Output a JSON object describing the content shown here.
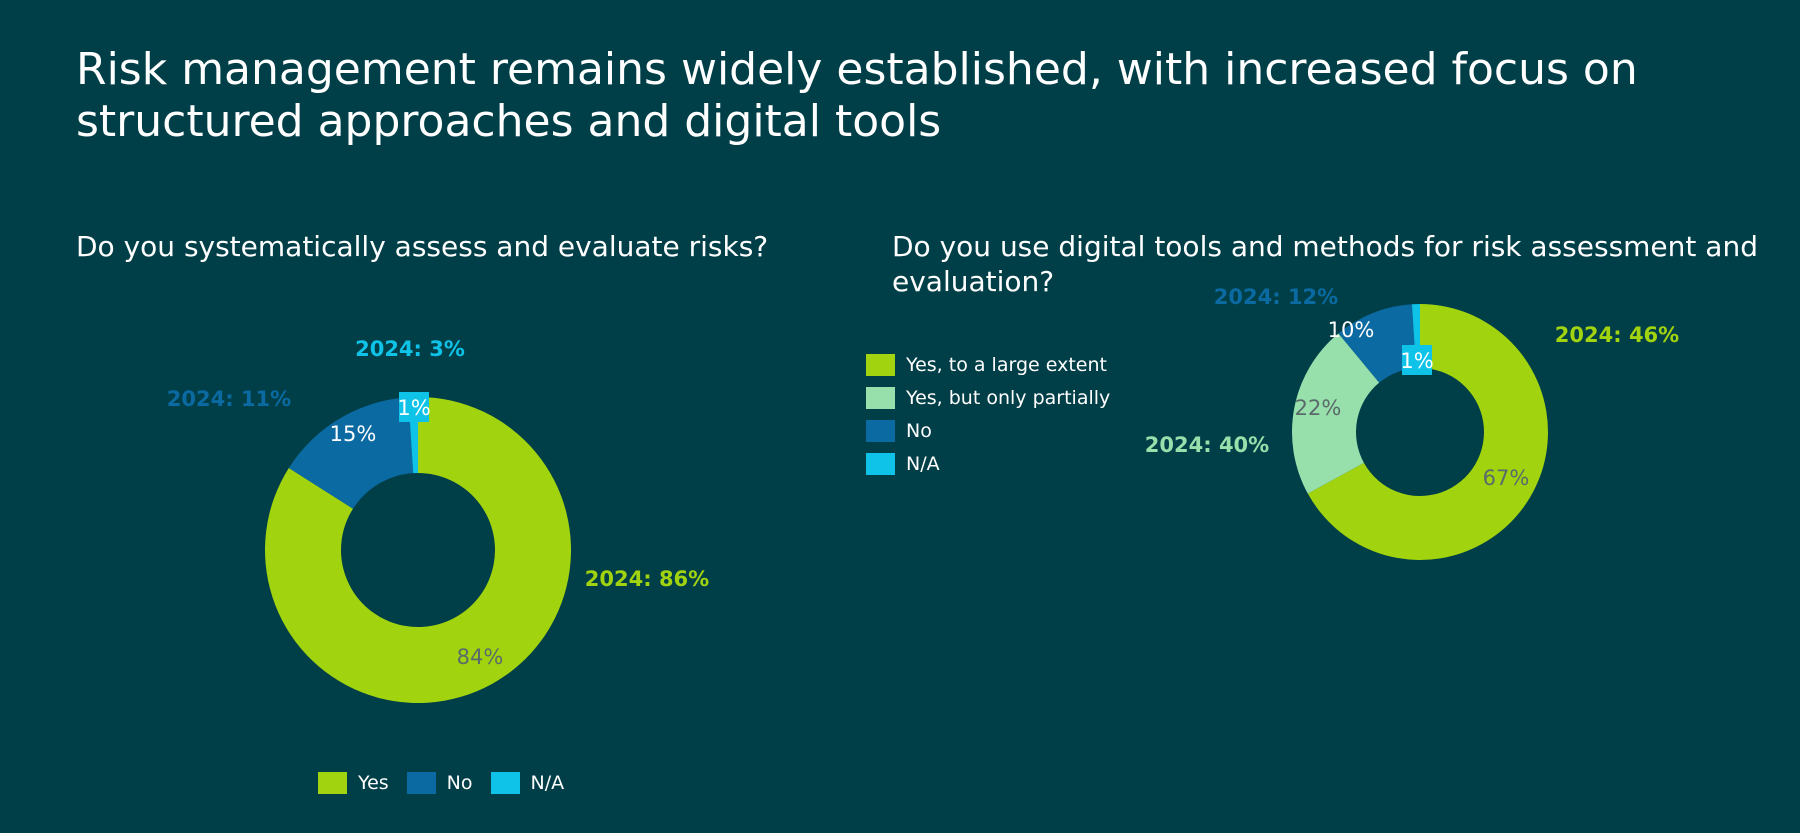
{
  "title": "Risk management remains widely established, with increased focus on structured approaches and digital tools",
  "colors": {
    "background": "#003f47",
    "yes": "#a2d30f",
    "yes_partial": "#97dfab",
    "no": "#0b6aa2",
    "na": "#0fc3e8",
    "value_label_dark": "#5a6a6a"
  },
  "chart_data": [
    {
      "type": "pie",
      "variant": "donut",
      "title": "Do you systematically assess and evaluate risks?",
      "legend_position": "bottom",
      "series": [
        {
          "name": "Yes",
          "value": 84,
          "label": "84%",
          "comparison": "2024: 86%",
          "color": "#a2d30f"
        },
        {
          "name": "No",
          "value": 15,
          "label": "15%",
          "comparison": "2024: 11%",
          "color": "#0b6aa2"
        },
        {
          "name": "N/A",
          "value": 1,
          "label": "1%",
          "comparison": "2024: 3%",
          "color": "#0fc3e8"
        }
      ]
    },
    {
      "type": "pie",
      "variant": "donut",
      "title": "Do you use digital tools and methods for risk assessment and evaluation?",
      "legend_position": "left",
      "series": [
        {
          "name": "Yes, to a large extent",
          "value": 67,
          "label": "67%",
          "comparison": "2024: 46%",
          "color": "#a2d30f"
        },
        {
          "name": "Yes, but only partially",
          "value": 22,
          "label": "22%",
          "comparison": "2024: 40%",
          "color": "#97dfab"
        },
        {
          "name": "No",
          "value": 10,
          "label": "10%",
          "comparison": "2024: 12%",
          "color": "#0b6aa2"
        },
        {
          "name": "N/A",
          "value": 1,
          "label": "1%",
          "comparison": "",
          "color": "#0fc3e8"
        }
      ]
    }
  ]
}
